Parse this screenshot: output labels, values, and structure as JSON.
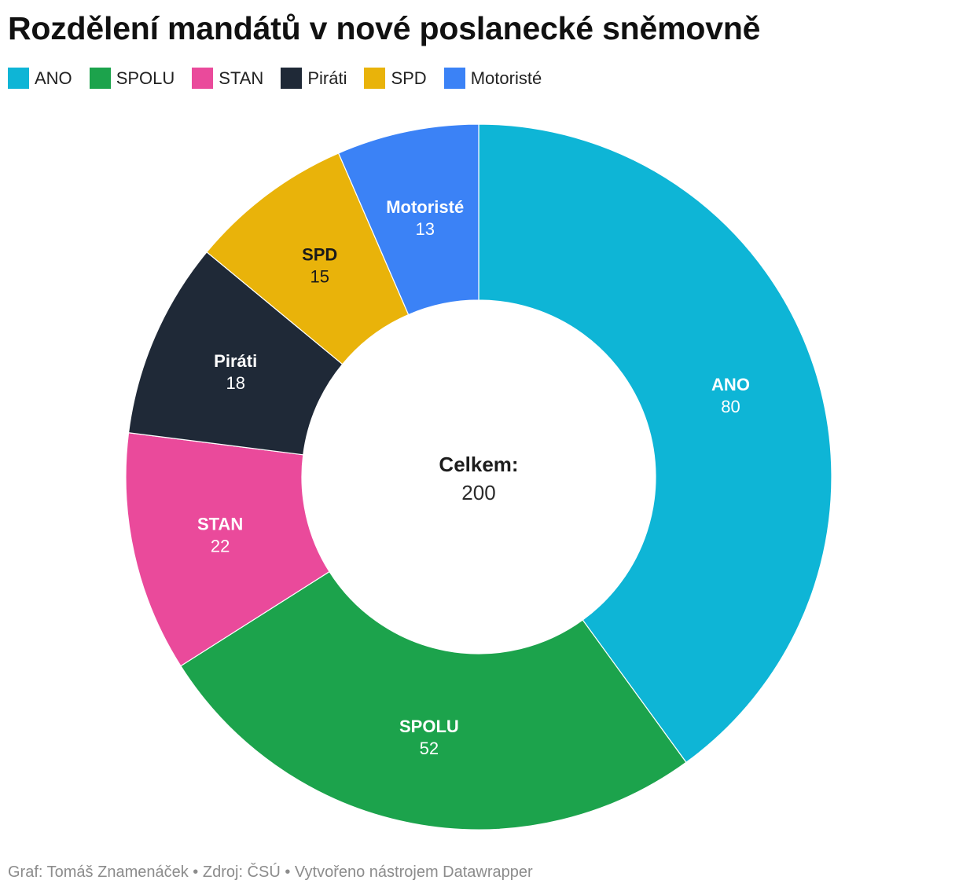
{
  "chart_data": {
    "type": "pie",
    "title": "Rozdělení mandátů v nové poslanecké sněmovně",
    "categories": [
      "ANO",
      "SPOLU",
      "STAN",
      "Piráti",
      "SPD",
      "Motoristé"
    ],
    "values": [
      80,
      52,
      22,
      18,
      15,
      13
    ],
    "colors": [
      "#0eb5d6",
      "#1ca34c",
      "#ea4a9b",
      "#1f2937",
      "#e9b30a",
      "#3b82f6"
    ],
    "label_colors": [
      "#ffffff",
      "#ffffff",
      "#ffffff",
      "#ffffff",
      "#1a1a1a",
      "#ffffff"
    ],
    "center_label": "Celkem:",
    "total": 200,
    "legend": "top-left"
  },
  "footer": {
    "byline": "Graf: Tomáš Znamenáček",
    "separator": "•",
    "source": "Zdroj: ČSÚ",
    "credit": "Vytvořeno nástrojem Datawrapper"
  }
}
